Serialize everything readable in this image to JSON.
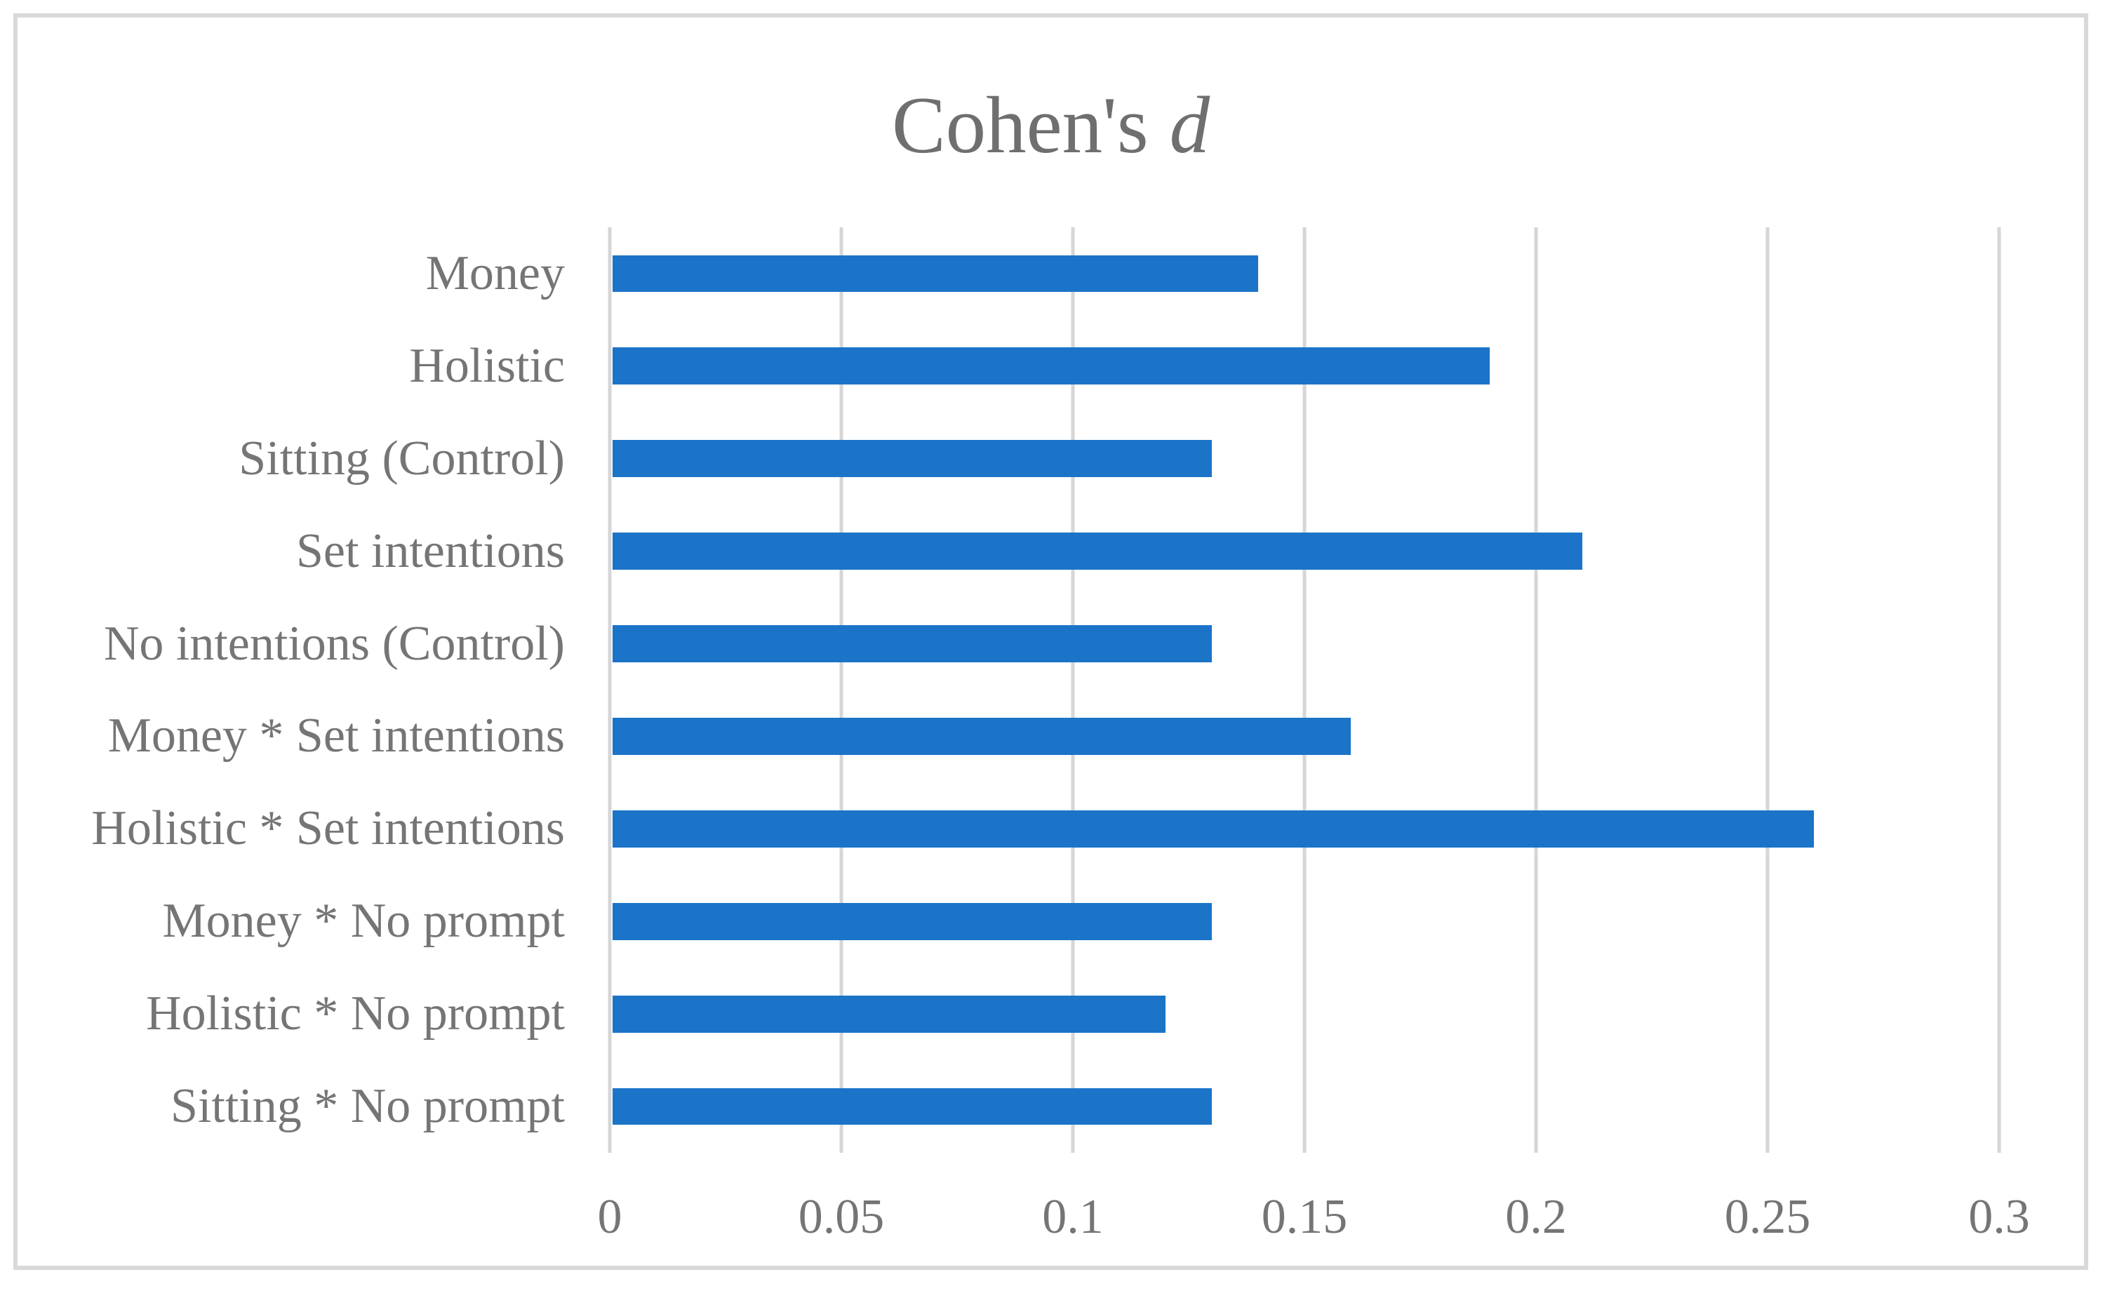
{
  "figure": {
    "background_color": "#FFFFFF",
    "frame_border_color": "#D9D9D9"
  },
  "title": {
    "main": "Cohen's",
    "italic": "d",
    "full_text": "Cohen's d",
    "color": "#6F6F6F"
  },
  "chart_data": {
    "type": "bar",
    "orientation": "horizontal",
    "title": "Cohen's d",
    "categories": [
      "Money",
      "Holistic",
      "Sitting (Control)",
      "Set intentions",
      "No intentions (Control)",
      "Money * Set intentions",
      "Holistic * Set intentions",
      "Money * No prompt",
      "Holistic * No prompt",
      "Sitting * No prompt"
    ],
    "values": [
      0.14,
      0.19,
      0.13,
      0.21,
      0.13,
      0.16,
      0.26,
      0.13,
      0.12,
      0.13
    ],
    "xlabel": "",
    "ylabel": "",
    "xlim": [
      0,
      0.3
    ],
    "xticks": [
      0,
      0.05,
      0.1,
      0.15,
      0.2,
      0.25,
      0.3
    ],
    "xtick_labels": [
      "0",
      "0.05",
      "0.1",
      "0.15",
      "0.2",
      "0.25",
      "0.3"
    ],
    "grid": true,
    "gridline_color": "#D6D6D6",
    "bar_color": "#1B74C8",
    "text_color": "#757575",
    "legend": false
  }
}
